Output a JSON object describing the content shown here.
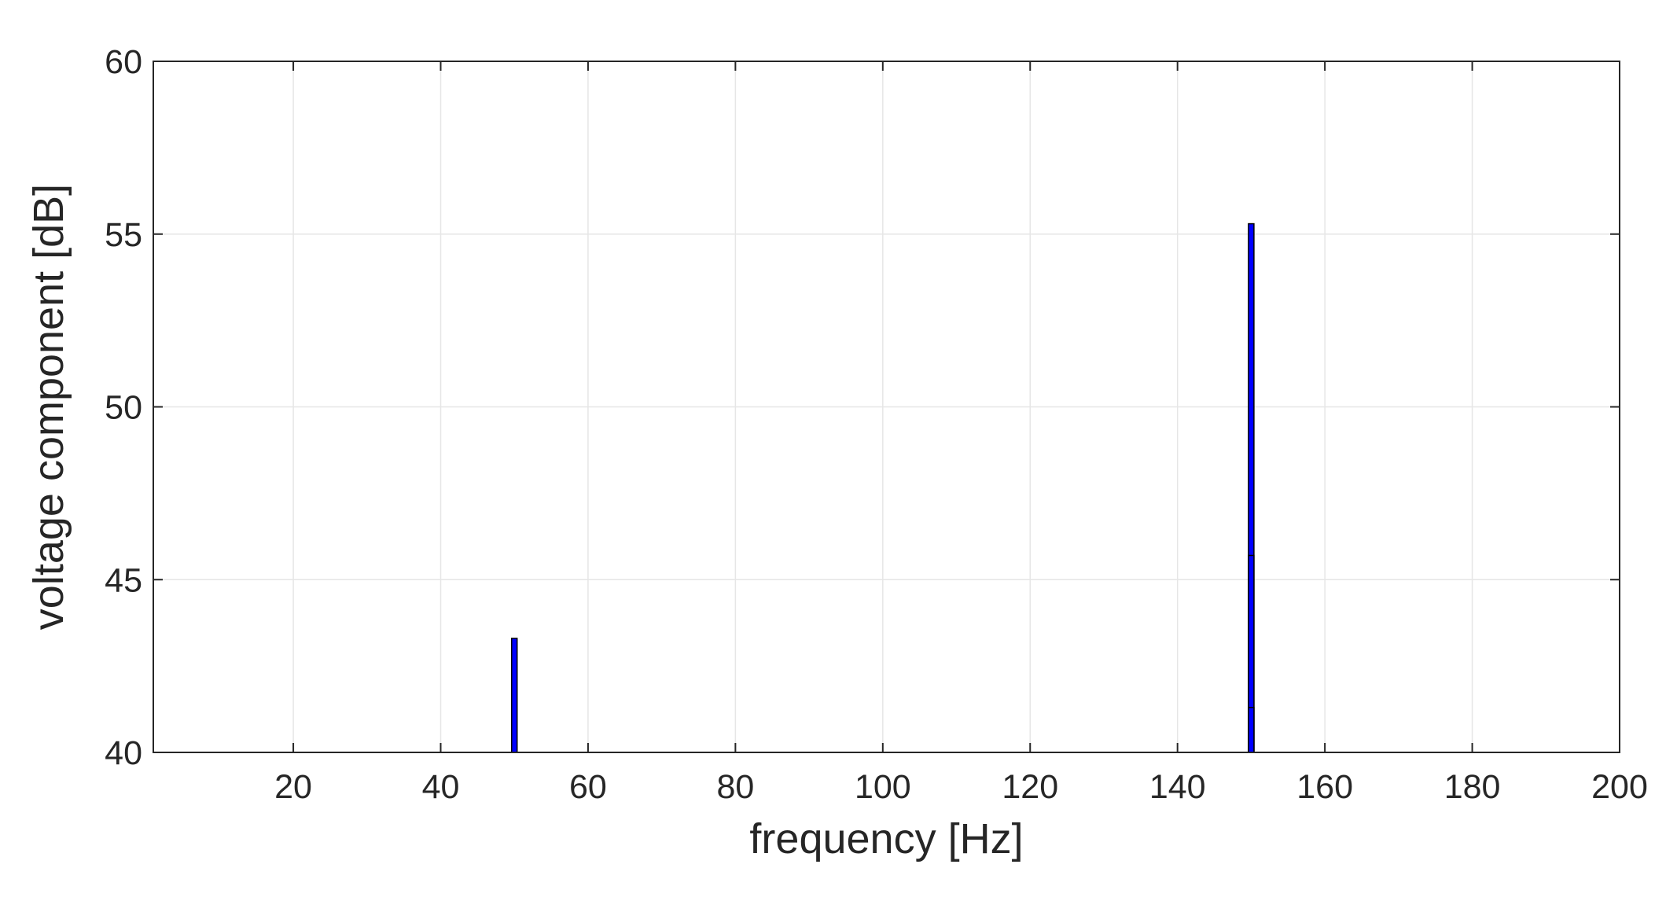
{
  "chart_data": {
    "type": "bar",
    "title": "",
    "xlabel": "frequency [Hz]",
    "ylabel": "voltage component  [dB]",
    "xlim": [
      1,
      200
    ],
    "ylim": [
      40,
      60
    ],
    "xticks": [
      20,
      40,
      60,
      80,
      100,
      120,
      140,
      160,
      180,
      200
    ],
    "yticks": [
      40,
      45,
      50,
      55,
      60
    ],
    "grid": true,
    "legend": "none",
    "colors": {
      "bar_fill": "#0000ff",
      "bar_edge": "#000000",
      "grid": "#e6e6e6",
      "axis": "#262626",
      "background": "#ffffff"
    },
    "series": [
      {
        "x": [
          50,
          150,
          150,
          150
        ],
        "values": [
          43.3,
          55.3,
          45.7,
          41.3
        ]
      }
    ]
  }
}
